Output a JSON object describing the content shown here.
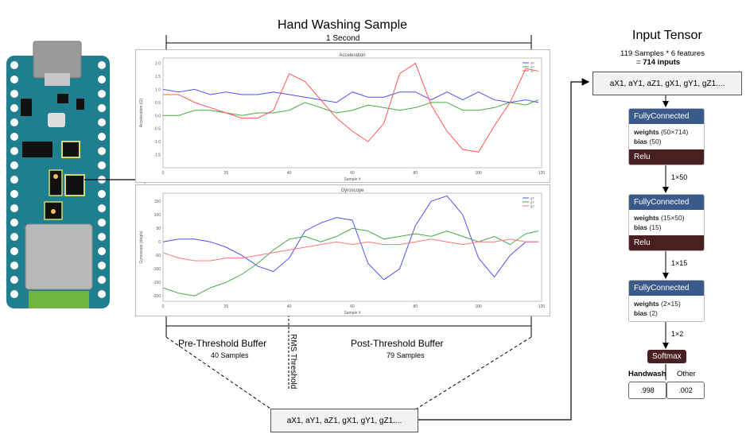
{
  "diagram": {
    "main_title": "Hand Washing Sample",
    "one_second": "1 Second",
    "pre_buffer": {
      "label": "Pre-Threshold Buffer",
      "samples": "40 Samples"
    },
    "rms_threshold": "RMS Threshold",
    "post_buffer": {
      "label": "Post-Threshold Buffer",
      "samples": "79 Samples"
    },
    "bottom_box": "aX1, aY1, aZ1, gX1, gY1, gZ1....",
    "tensor": {
      "title": "Input Tensor",
      "line1": "119 Samples * 6 features",
      "line2_prefix": "= ",
      "line2_bold": "714 inputs",
      "box": "aX1, aY1, aZ1, gX1, gY1, gZ1...."
    },
    "layers": [
      {
        "name": "FullyConnected",
        "weights_label": "weights",
        "weights": "(50×714)",
        "bias_label": "bias",
        "bias": "(50)",
        "activation": "Relu",
        "out": "1×50"
      },
      {
        "name": "FullyConnected",
        "weights_label": "weights",
        "weights": "(15×50)",
        "bias_label": "bias",
        "bias": "(15)",
        "activation": "Relu",
        "out": "1×15"
      },
      {
        "name": "FullyConnected",
        "weights_label": "weights",
        "weights": "(2×15)",
        "bias_label": "bias",
        "bias": "(2)",
        "activation": "",
        "out": "1×2"
      }
    ],
    "softmax": "Softmax",
    "outputs": [
      {
        "label": "Handwash",
        "value": ".998"
      },
      {
        "label": "Other",
        "value": ".002"
      }
    ],
    "colors": {
      "fc_header": "#3b5a8c",
      "relu": "#4a1f1f",
      "board": "#1f7f8f",
      "board_green": "#6fb340"
    }
  },
  "chart_data": [
    {
      "type": "line",
      "title": "Acceleration",
      "xlabel": "Sample #",
      "ylabel": "Acceleration (G)",
      "xlim": [
        0,
        120
      ],
      "ylim": [
        -2.0,
        2.2
      ],
      "xticks": [
        0,
        20,
        40,
        60,
        80,
        100,
        120
      ],
      "yticks": [
        -1.5,
        -1.0,
        -0.5,
        0.0,
        0.5,
        1.0,
        1.5,
        2.0
      ],
      "tick_labels_x": [
        "0",
        "20",
        "40",
        "60",
        "80",
        "100",
        "120"
      ],
      "tick_labels_y": [
        "-1.5",
        "-1.0",
        "-0.5",
        "0.0",
        "0.5",
        "1.0",
        "1.5",
        "2.0"
      ],
      "legend": "top-right",
      "series": [
        {
          "name": "aX",
          "color": "#4f4ff2",
          "x": [
            0,
            5,
            10,
            15,
            20,
            25,
            30,
            35,
            40,
            45,
            50,
            55,
            60,
            65,
            70,
            75,
            80,
            85,
            90,
            95,
            100,
            105,
            110,
            115,
            119
          ],
          "values": [
            1.0,
            0.9,
            1.0,
            0.8,
            0.9,
            0.8,
            0.8,
            0.9,
            0.8,
            0.7,
            0.6,
            0.5,
            0.9,
            0.7,
            0.7,
            0.9,
            0.9,
            0.6,
            0.9,
            0.6,
            0.9,
            0.6,
            0.5,
            0.6,
            0.5
          ]
        },
        {
          "name": "aY",
          "color": "#44aa44",
          "x": [
            0,
            5,
            10,
            15,
            20,
            25,
            30,
            35,
            40,
            45,
            50,
            55,
            60,
            65,
            70,
            75,
            80,
            85,
            90,
            95,
            100,
            105,
            110,
            115,
            119
          ],
          "values": [
            0.0,
            0.0,
            0.2,
            0.2,
            0.1,
            0.0,
            0.1,
            0.1,
            0.2,
            0.5,
            0.3,
            0.1,
            0.2,
            0.4,
            0.3,
            0.2,
            0.3,
            0.5,
            0.5,
            0.2,
            0.2,
            0.3,
            0.5,
            0.4,
            0.6
          ]
        },
        {
          "name": "aZ",
          "color": "#ff5555",
          "x": [
            0,
            5,
            10,
            15,
            20,
            25,
            30,
            35,
            40,
            45,
            50,
            55,
            60,
            65,
            70,
            75,
            80,
            85,
            90,
            95,
            100,
            105,
            110,
            115,
            119
          ],
          "values": [
            0.8,
            0.8,
            0.5,
            0.3,
            0.1,
            -0.1,
            -0.1,
            0.2,
            1.6,
            1.3,
            0.6,
            -0.1,
            -0.6,
            -1.0,
            -0.3,
            1.6,
            2.0,
            0.4,
            -0.6,
            -1.3,
            -1.4,
            -0.4,
            0.5,
            1.8,
            1.7
          ]
        }
      ]
    },
    {
      "type": "line",
      "title": "Gyroscope",
      "xlabel": "Sample #",
      "ylabel": "Gyroscope (deg/s)",
      "xlim": [
        0,
        120
      ],
      "ylim": [
        -220,
        180
      ],
      "xticks": [
        0,
        20,
        40,
        60,
        80,
        100,
        120
      ],
      "yticks": [
        -200,
        -150,
        -100,
        -50,
        0,
        50,
        100,
        150
      ],
      "tick_labels_x": [
        "0",
        "20",
        "40",
        "60",
        "80",
        "100",
        "120"
      ],
      "tick_labels_y": [
        "-200",
        "-150",
        "-100",
        "-50",
        "0",
        "50",
        "100",
        "150"
      ],
      "legend": "top-right",
      "series": [
        {
          "name": "gX",
          "color": "#4f4ff2",
          "x": [
            0,
            5,
            10,
            15,
            20,
            25,
            30,
            35,
            40,
            45,
            50,
            55,
            60,
            65,
            70,
            75,
            80,
            85,
            90,
            95,
            100,
            105,
            110,
            115,
            119
          ],
          "values": [
            0,
            10,
            10,
            0,
            -20,
            -50,
            -90,
            -110,
            -60,
            40,
            70,
            90,
            80,
            -80,
            -140,
            -100,
            60,
            150,
            170,
            100,
            -60,
            -130,
            -50,
            0,
            0
          ]
        },
        {
          "name": "gY",
          "color": "#44aa44",
          "x": [
            0,
            5,
            10,
            15,
            20,
            25,
            30,
            35,
            40,
            45,
            50,
            55,
            60,
            65,
            70,
            75,
            80,
            85,
            90,
            95,
            100,
            105,
            110,
            115,
            119
          ],
          "values": [
            -170,
            -190,
            -200,
            -170,
            -150,
            -120,
            -80,
            -30,
            10,
            20,
            0,
            20,
            50,
            40,
            10,
            20,
            30,
            20,
            40,
            20,
            0,
            20,
            -10,
            30,
            40
          ]
        },
        {
          "name": "gZ",
          "color": "#ff7777",
          "x": [
            0,
            5,
            10,
            15,
            20,
            25,
            30,
            35,
            40,
            45,
            50,
            55,
            60,
            65,
            70,
            75,
            80,
            85,
            90,
            95,
            100,
            105,
            110,
            115,
            119
          ],
          "values": [
            -40,
            -60,
            -70,
            -70,
            -60,
            -60,
            -50,
            -40,
            -30,
            -20,
            -10,
            0,
            -10,
            0,
            -10,
            -10,
            0,
            10,
            0,
            -10,
            0,
            0,
            10,
            0,
            0
          ]
        }
      ]
    }
  ]
}
